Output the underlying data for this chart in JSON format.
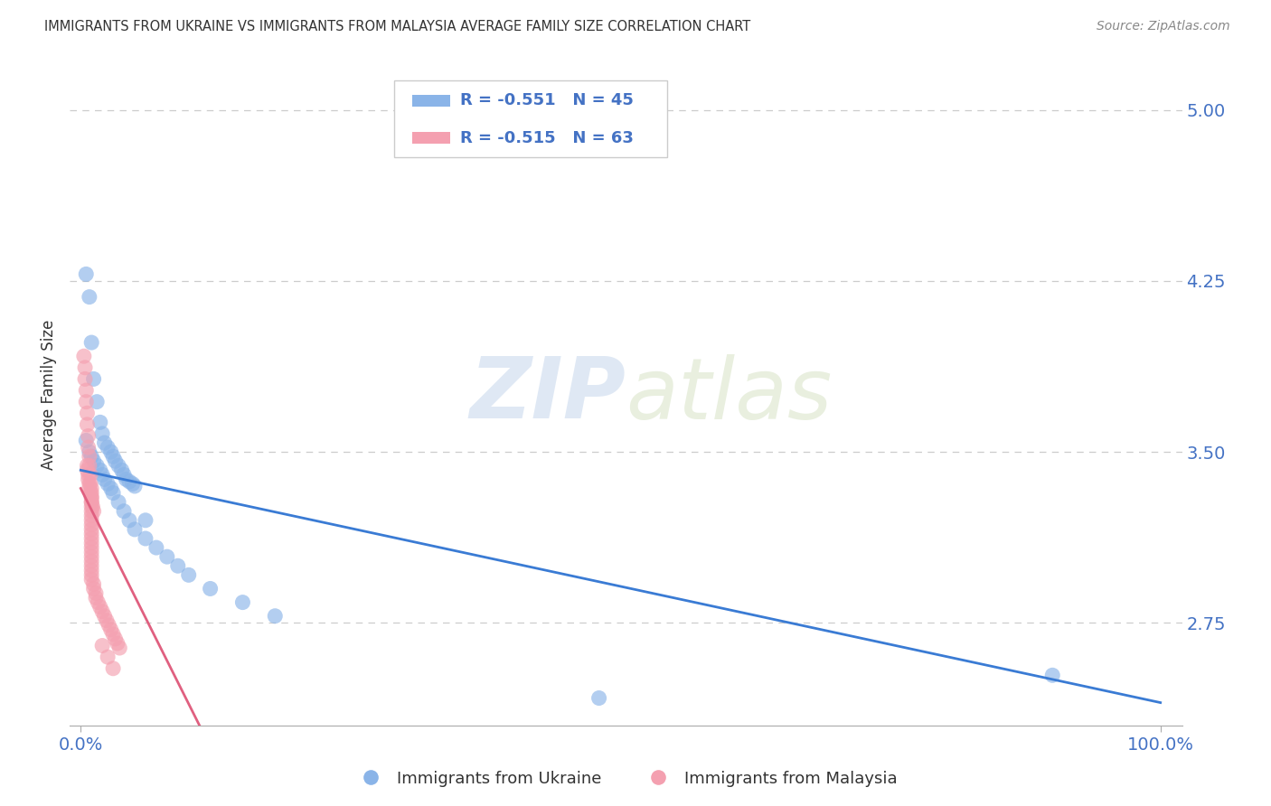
{
  "title": "IMMIGRANTS FROM UKRAINE VS IMMIGRANTS FROM MALAYSIA AVERAGE FAMILY SIZE CORRELATION CHART",
  "source": "Source: ZipAtlas.com",
  "ylabel": "Average Family Size",
  "ukraine_color": "#8ab4e8",
  "malaysia_color": "#f4a0b0",
  "ukraine_line_color": "#3a7bd4",
  "malaysia_line_color": "#e06080",
  "ukraine_label": "Immigrants from Ukraine",
  "malaysia_label": "Immigrants from Malaysia",
  "ukraine_R": "-0.551",
  "ukraine_N": "45",
  "malaysia_R": "-0.515",
  "malaysia_N": "63",
  "yticks": [
    2.75,
    3.5,
    4.25,
    5.0
  ],
  "ylim": [
    2.3,
    5.2
  ],
  "xlim": [
    -0.01,
    1.02
  ],
  "title_color": "#333333",
  "axis_label_color": "#4472c4",
  "grid_color": "#cccccc",
  "background_color": "#ffffff",
  "watermark_zip": "ZIP",
  "watermark_atlas": "atlas",
  "ukraine_scatter_x": [
    0.005,
    0.008,
    0.01,
    0.012,
    0.015,
    0.018,
    0.02,
    0.022,
    0.025,
    0.028,
    0.03,
    0.032,
    0.035,
    0.038,
    0.04,
    0.042,
    0.045,
    0.048,
    0.05,
    0.005,
    0.008,
    0.01,
    0.012,
    0.015,
    0.018,
    0.02,
    0.022,
    0.025,
    0.028,
    0.03,
    0.035,
    0.04,
    0.045,
    0.05,
    0.06,
    0.07,
    0.08,
    0.09,
    0.1,
    0.12,
    0.15,
    0.18,
    0.48,
    0.9,
    0.06
  ],
  "ukraine_scatter_y": [
    4.28,
    4.18,
    3.98,
    3.82,
    3.72,
    3.63,
    3.58,
    3.54,
    3.52,
    3.5,
    3.48,
    3.46,
    3.44,
    3.42,
    3.4,
    3.38,
    3.37,
    3.36,
    3.35,
    3.55,
    3.5,
    3.48,
    3.46,
    3.44,
    3.42,
    3.4,
    3.38,
    3.36,
    3.34,
    3.32,
    3.28,
    3.24,
    3.2,
    3.16,
    3.12,
    3.08,
    3.04,
    3.0,
    2.96,
    2.9,
    2.84,
    2.78,
    2.42,
    2.52,
    3.2
  ],
  "malaysia_scatter_x": [
    0.003,
    0.004,
    0.004,
    0.005,
    0.005,
    0.006,
    0.006,
    0.007,
    0.007,
    0.008,
    0.008,
    0.009,
    0.009,
    0.01,
    0.01,
    0.01,
    0.01,
    0.01,
    0.01,
    0.01,
    0.01,
    0.01,
    0.01,
    0.01,
    0.01,
    0.01,
    0.01,
    0.01,
    0.01,
    0.01,
    0.01,
    0.01,
    0.01,
    0.01,
    0.012,
    0.012,
    0.014,
    0.014,
    0.016,
    0.018,
    0.02,
    0.022,
    0.024,
    0.026,
    0.028,
    0.03,
    0.032,
    0.034,
    0.036,
    0.006,
    0.006,
    0.007,
    0.007,
    0.008,
    0.008,
    0.009,
    0.01,
    0.01,
    0.011,
    0.012,
    0.02,
    0.025,
    0.03
  ],
  "malaysia_scatter_y": [
    3.92,
    3.87,
    3.82,
    3.77,
    3.72,
    3.67,
    3.62,
    3.57,
    3.52,
    3.48,
    3.44,
    3.4,
    3.36,
    3.34,
    3.32,
    3.3,
    3.28,
    3.26,
    3.24,
    3.22,
    3.2,
    3.18,
    3.16,
    3.14,
    3.12,
    3.1,
    3.08,
    3.06,
    3.04,
    3.02,
    3.0,
    2.98,
    2.96,
    2.94,
    2.92,
    2.9,
    2.88,
    2.86,
    2.84,
    2.82,
    2.8,
    2.78,
    2.76,
    2.74,
    2.72,
    2.7,
    2.68,
    2.66,
    2.64,
    3.44,
    3.42,
    3.4,
    3.38,
    3.36,
    3.34,
    3.32,
    3.3,
    3.28,
    3.26,
    3.24,
    2.65,
    2.6,
    2.55
  ],
  "ukraine_line_x0": 0.0,
  "ukraine_line_y0": 3.42,
  "ukraine_line_x1": 1.0,
  "ukraine_line_y1": 2.4,
  "malaysia_line_x0": 0.0,
  "malaysia_line_y0": 3.34,
  "malaysia_line_x1": 0.11,
  "malaysia_line_y1": 2.3
}
